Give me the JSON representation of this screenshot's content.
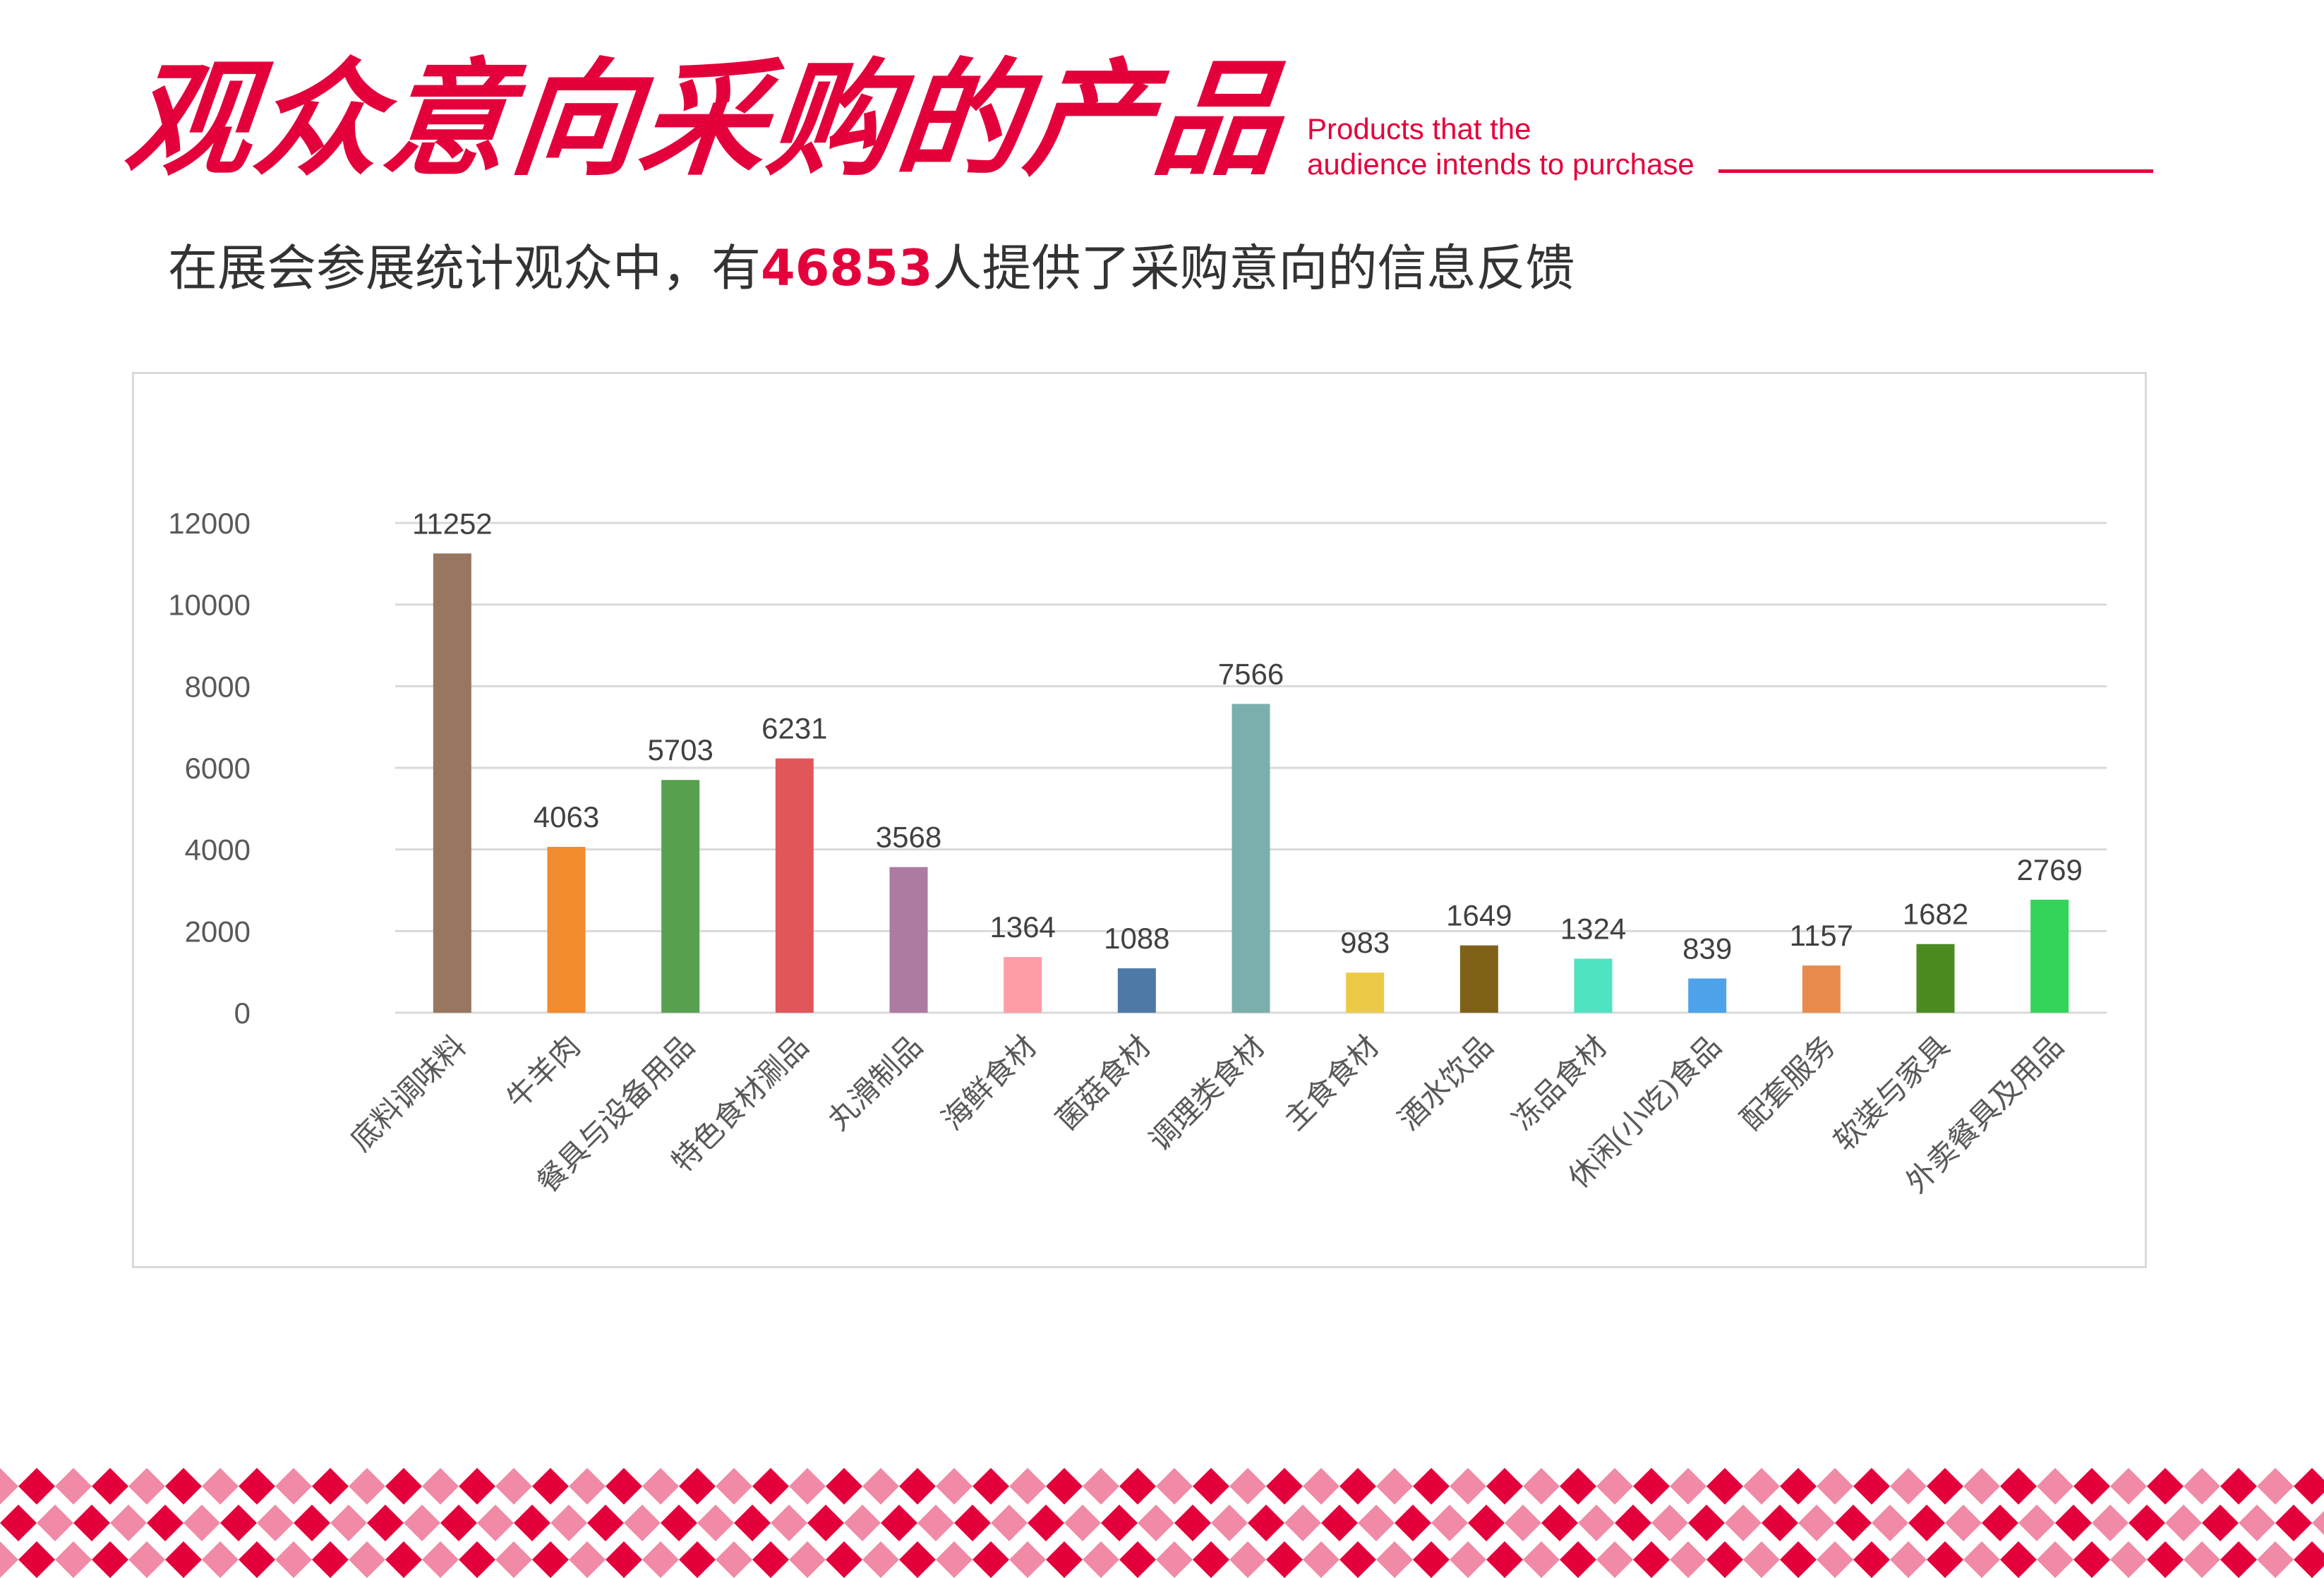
{
  "header": {
    "title_zh": "观众意向采购的产品",
    "title_en_line1": "Products that the",
    "title_en_line2": "audience intends to purchase",
    "accent_color": "#e4003b"
  },
  "summary": {
    "prefix": "在展会参展统计观众中，有",
    "highlight": "46853",
    "suffix": "人提供了采购意向的信息反馈"
  },
  "chart_data": {
    "type": "bar",
    "title": "",
    "xlabel": "",
    "ylabel": "",
    "ylim": [
      0,
      12000
    ],
    "yticks": [
      0,
      2000,
      4000,
      6000,
      8000,
      10000,
      12000
    ],
    "grid": true,
    "legend": "none",
    "categories": [
      "底料调味料",
      "牛羊肉",
      "餐具与设备用品",
      "特色食材涮品",
      "丸滑制品",
      "海鲜食材",
      "菌菇食材",
      "调理类食材",
      "主食食材",
      "酒水饮品",
      "冻品食材",
      "休闲(小吃)食品",
      "配套服务",
      "软装与家具",
      "外卖餐具及用品"
    ],
    "values": [
      11252,
      4063,
      5703,
      6231,
      3568,
      1364,
      1088,
      7566,
      983,
      1649,
      1324,
      839,
      1157,
      1682,
      2769
    ],
    "colors": [
      "#98765f",
      "#f28a2e",
      "#58a14e",
      "#e15759",
      "#ad7aa1",
      "#ff9da7",
      "#4e79a7",
      "#7aafad",
      "#edc948",
      "#7f6118",
      "#4fe3c2",
      "#4ea3e8",
      "#e98b4c",
      "#4a8c22",
      "#34d35a"
    ]
  },
  "decoration": {
    "pattern_colors": [
      "#e4003b",
      "#f08aa6"
    ]
  }
}
